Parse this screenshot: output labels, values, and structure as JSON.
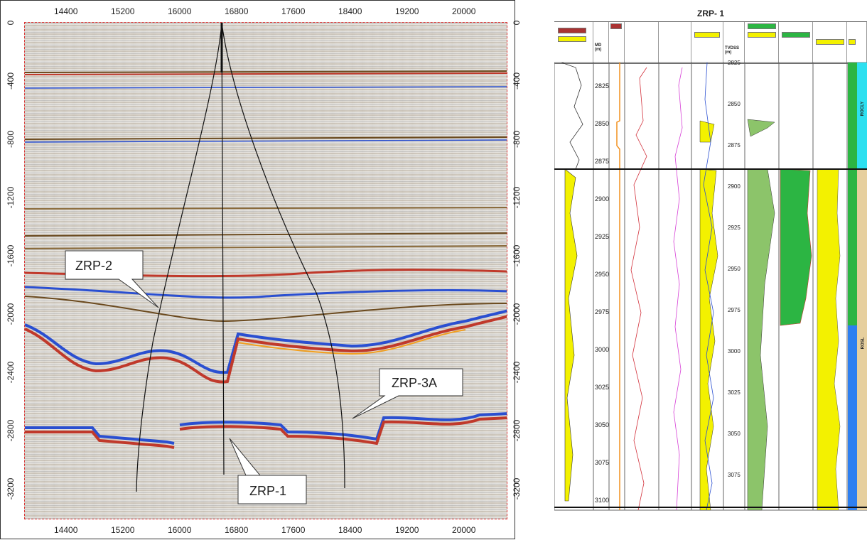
{
  "seismic": {
    "x_ticks_top": [
      "14400",
      "15200",
      "16000",
      "16800",
      "17600",
      "18400",
      "19200",
      "20000"
    ],
    "x_ticks_bottom": [
      "14400",
      "15200",
      "16000",
      "16800",
      "17600",
      "18400",
      "19200",
      "20000"
    ],
    "y_ticks_left": [
      "0",
      "-400",
      "-800",
      "-1200",
      "-1600",
      "-2000",
      "-2400",
      "-2800",
      "-3200"
    ],
    "y_ticks_right": [
      "0",
      "-400",
      "-800",
      "-1200",
      "-1600",
      "-2000",
      "-2400",
      "-2800",
      "-3200"
    ],
    "wells": [
      {
        "label": "ZRP-2"
      },
      {
        "label": "ZRP-3A"
      },
      {
        "label": "ZRP-1"
      }
    ],
    "colors": {
      "positive": "#c0392b",
      "negative": "#2a4fd1",
      "trough": "#6b4a1e"
    }
  },
  "well_log": {
    "title": "ZRP- 1",
    "depth_ticks_md": [
      "2825",
      "2850",
      "2875",
      "2900",
      "2925",
      "2950",
      "2975",
      "3000",
      "3025",
      "3050",
      "3075",
      "3100"
    ],
    "depth_ticks_tvd": [
      "2825",
      "2850",
      "2875",
      "2900",
      "2925",
      "2950",
      "2975",
      "3000",
      "3025",
      "3050",
      "3075"
    ],
    "md_header": "MD\n(m)",
    "tvd_header": "TVDSS\n(m)",
    "zone_labels": [
      "ROCLY",
      "ROSL"
    ],
    "colors": {
      "yellow": "#f3f100",
      "green": "#2cb543",
      "cyan": "#2de0f0",
      "tan": "#e6cf9e",
      "blue": "#2d7ff0"
    }
  }
}
